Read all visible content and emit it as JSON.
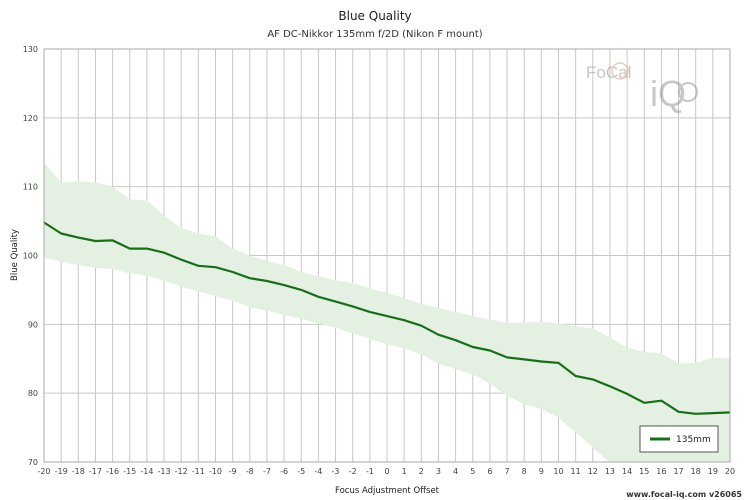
{
  "chart_data": {
    "type": "line",
    "title": "Blue Quality",
    "subtitle": "AF DC-Nikkor 135mm f/2D (Nikon F mount)",
    "xlabel": "Focus Adjustment Offset",
    "ylabel": "Blue Quality",
    "xlim": [
      -20,
      20
    ],
    "ylim": [
      70,
      130
    ],
    "yticks": [
      70,
      80,
      90,
      100,
      110,
      120,
      130
    ],
    "grid": true,
    "legend_position": "bottom-right",
    "x": [
      -20,
      -19,
      -18,
      -17,
      -16,
      -15,
      -14,
      -13,
      -12,
      -11,
      -10,
      -9,
      -8,
      -7,
      -6,
      -5,
      -4,
      -3,
      -2,
      -1,
      0,
      1,
      2,
      3,
      4,
      5,
      6,
      7,
      8,
      9,
      10,
      11,
      12,
      13,
      14,
      15,
      16,
      17,
      18,
      19,
      20
    ],
    "series": [
      {
        "name": "135mm",
        "color": "#1a6e1a",
        "values": [
          104.8,
          103.2,
          102.6,
          102.1,
          102.2,
          101.0,
          101.0,
          100.4,
          99.4,
          98.5,
          98.3,
          97.6,
          96.7,
          96.3,
          95.7,
          95.0,
          94.0,
          93.3,
          92.6,
          91.8,
          91.2,
          90.6,
          89.8,
          88.5,
          87.7,
          86.7,
          86.2,
          85.2,
          84.9,
          84.6,
          84.4,
          82.5,
          82.0,
          81.0,
          79.9,
          78.6,
          78.9,
          77.3,
          77.0,
          77.1,
          77.2
        ],
        "band_upper": [
          113.4,
          110.6,
          110.8,
          110.6,
          110.0,
          108.2,
          108.0,
          105.8,
          104.0,
          103.2,
          102.8,
          101.0,
          100.0,
          99.2,
          98.6,
          97.6,
          97.0,
          96.4,
          96.0,
          95.2,
          94.6,
          93.8,
          93.0,
          92.4,
          91.8,
          91.2,
          90.7,
          90.2,
          90.3,
          90.4,
          90.1,
          89.7,
          89.4,
          88.1,
          86.6,
          86.0,
          85.8,
          84.3,
          84.4,
          85.2,
          85.0
        ],
        "band_lower": [
          99.7,
          99.1,
          98.6,
          98.2,
          98.0,
          97.4,
          97.1,
          96.3,
          95.5,
          94.8,
          94.1,
          93.4,
          92.5,
          92.0,
          91.4,
          90.8,
          90.1,
          89.5,
          88.7,
          87.9,
          87.1,
          86.5,
          85.6,
          84.3,
          83.5,
          82.7,
          81.4,
          79.6,
          78.4,
          77.7,
          76.4,
          74.3,
          72.1,
          69.9,
          68.0,
          66.6,
          67.5,
          66.5,
          66.5,
          66.6,
          66.5
        ]
      }
    ]
  },
  "watermark": {
    "brand_top": "FoCal",
    "brand_bottom": "iQ"
  },
  "footer": "www.focal-iq.com  v26065"
}
